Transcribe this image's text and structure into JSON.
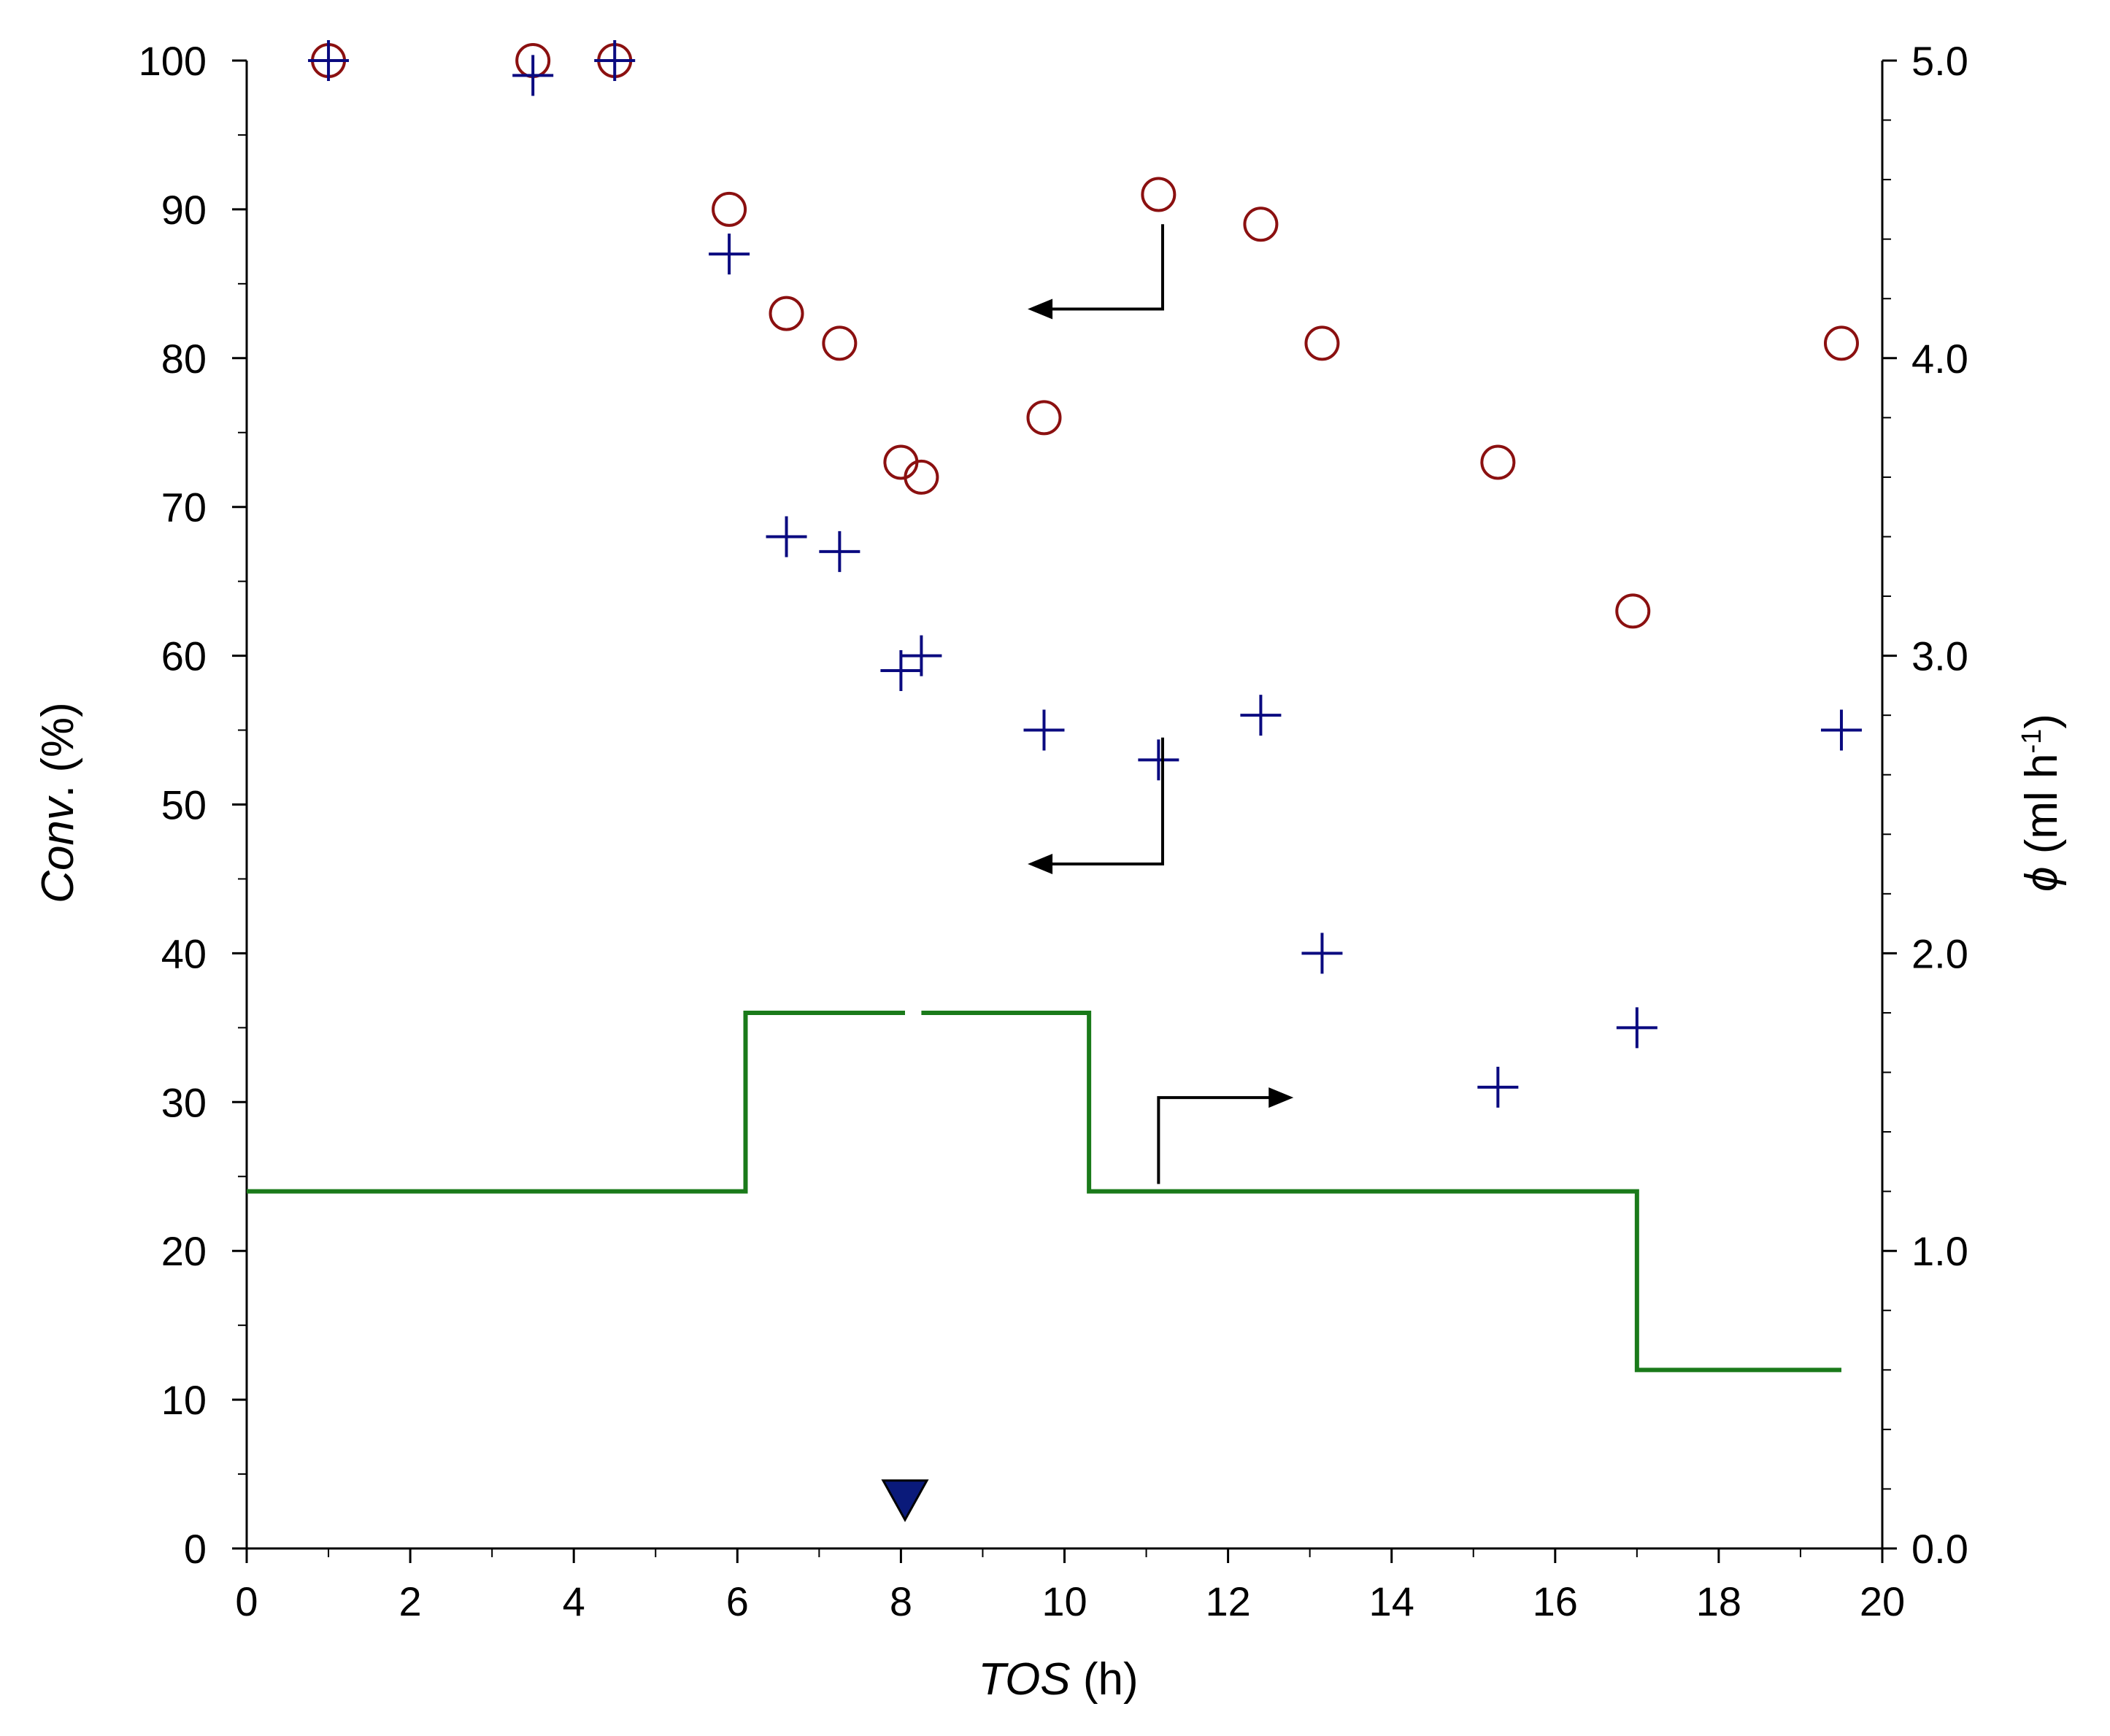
{
  "chart_data": {
    "type": "scatter",
    "title": "",
    "x_axis": {
      "label_italic": "TOS",
      "label_unit": " (h)",
      "range": [
        0,
        20
      ],
      "ticks": [
        0,
        2,
        4,
        6,
        8,
        10,
        12,
        14,
        16,
        18,
        20
      ],
      "tick_labels": [
        "0",
        "2",
        "4",
        "6",
        "8",
        "10",
        "12",
        "14",
        "16",
        "18",
        "20"
      ]
    },
    "y_axis_left": {
      "label_italic": "Conv",
      "label_unit": ". (%)",
      "range": [
        0,
        100
      ],
      "ticks": [
        0,
        10,
        20,
        30,
        40,
        50,
        60,
        70,
        80,
        90,
        100
      ],
      "tick_labels": [
        "0",
        "10",
        "20",
        "30",
        "40",
        "50",
        "60",
        "70",
        "80",
        "90",
        "100"
      ]
    },
    "y_axis_right": {
      "label_symbol": "ϕ",
      "label_unit": " (ml h",
      "label_superscript": "-1",
      "label_close": ")",
      "range": [
        0,
        5
      ],
      "ticks": [
        0,
        1,
        2,
        3,
        4,
        5
      ],
      "tick_labels": [
        "0.0",
        "1.0",
        "2.0",
        "3.0",
        "4.0",
        "5.0"
      ]
    },
    "series": [
      {
        "name": "circles",
        "marker": "circle",
        "color": "#8b1010",
        "axis": "left",
        "points": [
          [
            1.0,
            100
          ],
          [
            3.5,
            100
          ],
          [
            4.5,
            100
          ],
          [
            5.9,
            90
          ],
          [
            6.6,
            83
          ],
          [
            7.25,
            81
          ],
          [
            8.0,
            73
          ],
          [
            8.25,
            72
          ],
          [
            9.75,
            76
          ],
          [
            11.15,
            91
          ],
          [
            12.4,
            89
          ],
          [
            13.15,
            81
          ],
          [
            15.3,
            73
          ],
          [
            16.95,
            63
          ],
          [
            19.5,
            81
          ]
        ]
      },
      {
        "name": "crosses",
        "marker": "plus",
        "color": "#0a0a80",
        "axis": "left",
        "points": [
          [
            1.0,
            100
          ],
          [
            3.5,
            99
          ],
          [
            4.5,
            100
          ],
          [
            5.9,
            87
          ],
          [
            6.6,
            68
          ],
          [
            7.25,
            67
          ],
          [
            8.0,
            59
          ],
          [
            8.25,
            60
          ],
          [
            9.75,
            55
          ],
          [
            11.15,
            53
          ],
          [
            12.4,
            56
          ],
          [
            13.15,
            40
          ],
          [
            15.3,
            31
          ],
          [
            17.0,
            35
          ],
          [
            19.5,
            55
          ]
        ]
      },
      {
        "name": "flow rate",
        "marker": "step-line",
        "color": "#1a7a1a",
        "axis": "right",
        "segments": [
          [
            [
              0,
              1.2
            ],
            [
              6.1,
              1.2
            ],
            [
              6.1,
              1.8
            ],
            [
              8.05,
              1.8
            ]
          ],
          [
            [
              8.25,
              1.8
            ],
            [
              10.3,
              1.8
            ],
            [
              10.3,
              1.2
            ],
            [
              17.0,
              1.2
            ],
            [
              17.0,
              0.6
            ],
            [
              19.5,
              0.6
            ]
          ]
        ]
      }
    ],
    "annotations": [
      {
        "type": "arrow-left",
        "tail": [
          11.2,
          89
        ],
        "corner": [
          11.2,
          83.3
        ],
        "head": [
          9.55,
          83.3
        ],
        "meaning": "circles refer to left axis"
      },
      {
        "type": "arrow-left",
        "tail": [
          11.2,
          54.5
        ],
        "corner": [
          11.2,
          46
        ],
        "head": [
          9.55,
          46
        ],
        "meaning": "crosses refer to left axis"
      },
      {
        "type": "arrow-right",
        "tail": [
          11.15,
          24.5
        ],
        "corner": [
          11.15,
          30.3
        ],
        "head": [
          12.8,
          30.3
        ],
        "meaning": "line refers to right axis"
      },
      {
        "type": "marker-triangle-down",
        "x": 8.05,
        "y": 3,
        "color": "#0a1a7a",
        "meaning": "event marker"
      }
    ]
  }
}
